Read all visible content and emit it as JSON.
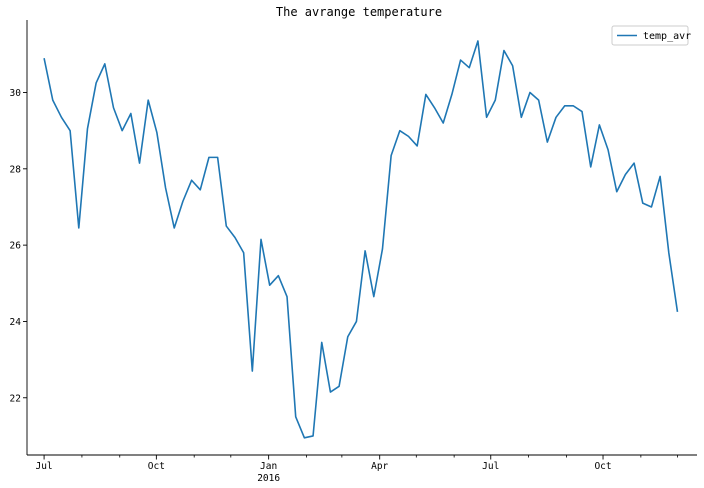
{
  "chart_data": {
    "type": "line",
    "title": "The avrange temperature",
    "xlabel": "",
    "ylabel": "",
    "x_start": "2015-07-01",
    "x_end": "2016-12-01",
    "xlim": [
      "2015-06-17",
      "2016-12-17"
    ],
    "ylim": [
      20.5,
      31.9
    ],
    "y_ticks": [
      22,
      24,
      26,
      28,
      30
    ],
    "x_major_ticks": [
      {
        "date": "2015-07-01",
        "label": "Jul",
        "sublabel": ""
      },
      {
        "date": "2015-10-01",
        "label": "Oct",
        "sublabel": ""
      },
      {
        "date": "2016-01-01",
        "label": "Jan",
        "sublabel": "2016"
      },
      {
        "date": "2016-04-01",
        "label": "Apr",
        "sublabel": ""
      },
      {
        "date": "2016-07-01",
        "label": "Jul",
        "sublabel": ""
      },
      {
        "date": "2016-10-01",
        "label": "Oct",
        "sublabel": ""
      }
    ],
    "x_minor_ticks": [
      "2015-08-01",
      "2015-09-01",
      "2015-11-01",
      "2015-12-01",
      "2016-02-01",
      "2016-03-01",
      "2016-05-01",
      "2016-06-01",
      "2016-08-01",
      "2016-09-01",
      "2016-11-01",
      "2016-12-01"
    ],
    "legend": {
      "position": "top-right"
    },
    "series": [
      {
        "name": "temp_avr",
        "color": "#1f77b4",
        "values": [
          30.9,
          29.8,
          29.35,
          29.0,
          26.45,
          29.05,
          30.25,
          30.75,
          29.6,
          29.0,
          29.45,
          28.15,
          29.8,
          28.95,
          27.5,
          26.45,
          27.15,
          27.7,
          27.45,
          28.3,
          28.3,
          26.5,
          26.2,
          25.8,
          22.7,
          26.15,
          24.95,
          25.2,
          24.65,
          21.5,
          20.95,
          21.0,
          23.45,
          22.15,
          22.3,
          23.6,
          24.0,
          25.85,
          24.65,
          25.9,
          28.35,
          29.0,
          28.85,
          28.6,
          29.95,
          29.6,
          29.2,
          29.95,
          30.85,
          30.65,
          31.35,
          29.35,
          29.8,
          31.1,
          30.7,
          29.35,
          30.0,
          29.8,
          28.7,
          29.35,
          29.65,
          29.65,
          29.5,
          28.05,
          29.15,
          28.5,
          27.4,
          27.85,
          28.15,
          27.1,
          27.0,
          27.8,
          25.8,
          24.25
        ]
      }
    ]
  }
}
